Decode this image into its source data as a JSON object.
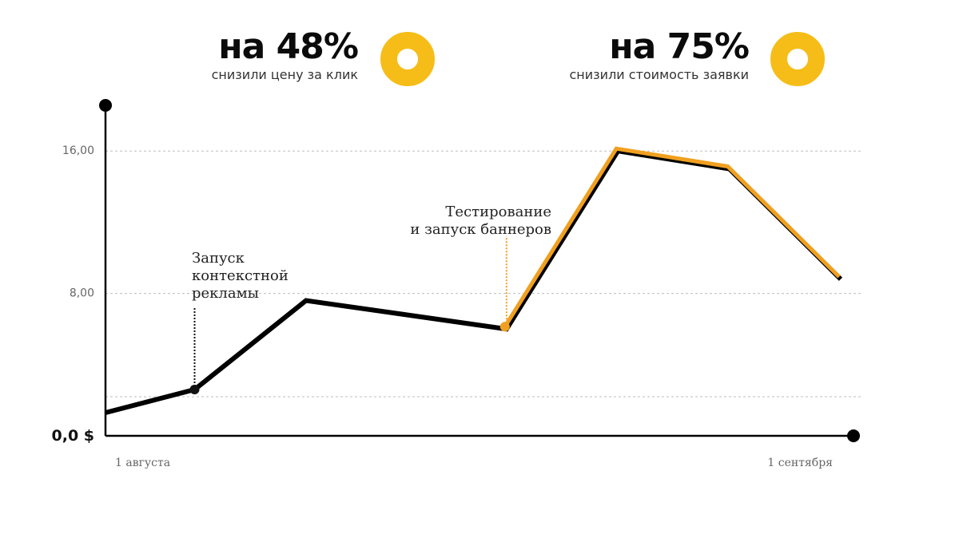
{
  "stats": [
    {
      "value": "на 48%",
      "caption": "снизили  цену за клик",
      "ring_color": "#f6bd18"
    },
    {
      "value": "на 75%",
      "caption": "снизили стоимость заявки",
      "ring_color": "#f6bd18"
    }
  ],
  "chart_data": {
    "type": "line",
    "title": "",
    "xlabel": "",
    "ylabel": "",
    "x": [
      0,
      4,
      9,
      18,
      23,
      28,
      33
    ],
    "x_ticks": [
      {
        "x": 0,
        "label": "1 августа"
      },
      {
        "x": 33,
        "label": "1 сентября"
      }
    ],
    "xlim": [
      0,
      33
    ],
    "ylim": [
      0,
      20
    ],
    "y_ticks": [
      {
        "value": 0,
        "label": "0,0 $"
      },
      {
        "value": 2.2,
        "label": ""
      },
      {
        "value": 8,
        "label": "8,00"
      },
      {
        "value": 16,
        "label": "16,00"
      }
    ],
    "grid": true,
    "series": [
      {
        "values": [
          1.3,
          2.6,
          7.6,
          6.0,
          16.0,
          15.0,
          8.8
        ],
        "color": "#000000",
        "highlight_from_index": 3,
        "highlight_color": "#f0a020"
      }
    ],
    "annotations": [
      {
        "lines": [
          "Запуск",
          "контекстной",
          "рекламы"
        ],
        "point_index": 1,
        "style": "dotted-black"
      },
      {
        "lines": [
          "Тестирование",
          "и запуск баннеров"
        ],
        "point_index": 3,
        "style": "dotted-orange"
      }
    ]
  }
}
